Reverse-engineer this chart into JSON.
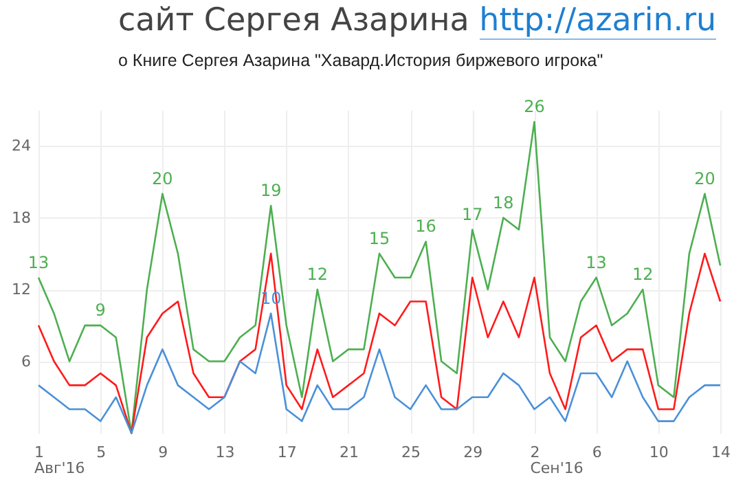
{
  "chart_data": {
    "type": "line",
    "title": "сайт Сергея Азарина http://azarin.ru",
    "subtitle": "о Книге Сергея Азарина \"Хавард.История биржевого игрока\"",
    "categories": [
      "1",
      null,
      null,
      null,
      "5",
      null,
      null,
      null,
      "9",
      null,
      null,
      null,
      "13",
      null,
      null,
      null,
      "17",
      null,
      null,
      null,
      "21",
      null,
      null,
      null,
      "25",
      null,
      null,
      null,
      "29",
      null,
      null,
      null,
      "2",
      null,
      null,
      null,
      "6",
      null,
      null,
      null,
      "10",
      null,
      null,
      null,
      "14"
    ],
    "series": [
      {
        "color": "#4caf50",
        "values": [
          13,
          10,
          6,
          9,
          9,
          8,
          0,
          12,
          20,
          15,
          7,
          6,
          6,
          8,
          9,
          19,
          9,
          3,
          12,
          6,
          7,
          7,
          15,
          13,
          13,
          16,
          6,
          5,
          17,
          12,
          18,
          17,
          26,
          8,
          6,
          11,
          13,
          9,
          10,
          12,
          4,
          3,
          15,
          20,
          14
        ],
        "value_labels": [
          "13",
          null,
          null,
          null,
          "9",
          null,
          null,
          null,
          "20",
          null,
          null,
          null,
          null,
          null,
          null,
          "19",
          null,
          null,
          "12",
          null,
          null,
          null,
          "15",
          null,
          null,
          "16",
          null,
          null,
          "17",
          null,
          "18",
          null,
          "26",
          null,
          null,
          null,
          "13",
          null,
          null,
          "12",
          null,
          null,
          null,
          "20",
          null
        ]
      },
      {
        "color": "#ff1a1a",
        "values": [
          9,
          6,
          4,
          4,
          5,
          4,
          0,
          8,
          10,
          11,
          5,
          3,
          3,
          6,
          7,
          15,
          4,
          2,
          7,
          3,
          4,
          5,
          10,
          9,
          11,
          11,
          3,
          2,
          13,
          8,
          11,
          8,
          13,
          5,
          2,
          8,
          9,
          6,
          7,
          7,
          2,
          2,
          10,
          15,
          11
        ]
      },
      {
        "color": "#4a90d9",
        "values": [
          4,
          3,
          2,
          2,
          1,
          3,
          0,
          4,
          7,
          4,
          3,
          2,
          3,
          6,
          5,
          10,
          2,
          1,
          4,
          2,
          2,
          3,
          7,
          3,
          2,
          4,
          2,
          2,
          3,
          3,
          5,
          4,
          2,
          3,
          1,
          5,
          5,
          3,
          6,
          3,
          1,
          1,
          3,
          4,
          4
        ],
        "value_labels": [
          null,
          null,
          null,
          null,
          null,
          null,
          null,
          null,
          null,
          null,
          null,
          null,
          null,
          null,
          null,
          "10",
          null,
          null,
          null,
          null,
          null,
          null,
          null,
          null,
          null,
          null,
          null,
          null,
          null,
          null,
          null,
          null,
          null,
          null,
          null,
          null,
          null,
          null,
          null,
          null,
          null,
          null,
          null,
          null,
          null
        ]
      }
    ],
    "annotations": [
      "Авг'16",
      "Сен'16"
    ],
    "ylim": [
      0,
      27
    ],
    "yticks": [
      6,
      12,
      18,
      24
    ],
    "grid": true,
    "legend": false,
    "marker": "none",
    "line_style": "solid"
  }
}
